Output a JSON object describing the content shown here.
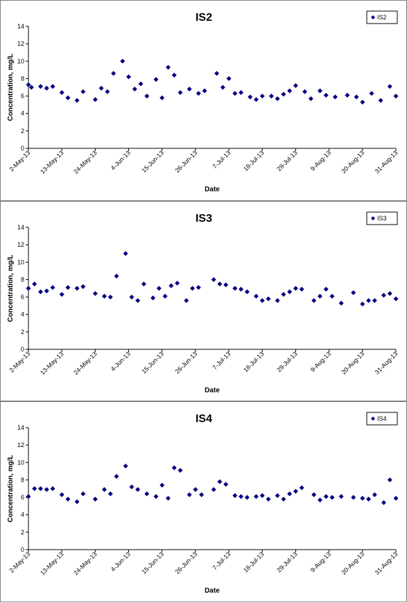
{
  "chart_data": [
    {
      "type": "scatter",
      "title": "IS2",
      "xlabel": "Date",
      "ylabel": "Concentration, mg/L",
      "ylim": [
        0,
        14
      ],
      "yticks": [
        "0",
        "2",
        "4",
        "6",
        "8",
        "10",
        "12",
        "14"
      ],
      "xlim": [
        "2013-05-02",
        "2013-08-31"
      ],
      "xticks": [
        "2-May-13",
        "13-May-13",
        "24-May-13",
        "4-Jun-13",
        "15-Jun-13",
        "26-Jun-13",
        "7-Jul-13",
        "18-Jul-13",
        "29-Jul-13",
        "9-Aug-13",
        "20-Aug-13",
        "31-Aug-13"
      ],
      "xtick_dates": [
        "2013-05-02",
        "2013-05-13",
        "2013-05-24",
        "2013-06-04",
        "2013-06-15",
        "2013-06-26",
        "2013-07-07",
        "2013-07-18",
        "2013-07-29",
        "2013-08-09",
        "2013-08-20",
        "2013-08-31"
      ],
      "grid": false,
      "legend": "top-right",
      "marker_color": "#000080",
      "series": [
        {
          "name": "IS2",
          "x": [
            "2013-05-02",
            "2013-05-03",
            "2013-05-06",
            "2013-05-08",
            "2013-05-10",
            "2013-05-13",
            "2013-05-15",
            "2013-05-18",
            "2013-05-20",
            "2013-05-24",
            "2013-05-26",
            "2013-05-28",
            "2013-05-30",
            "2013-06-02",
            "2013-06-04",
            "2013-06-06",
            "2013-06-08",
            "2013-06-10",
            "2013-06-13",
            "2013-06-15",
            "2013-06-17",
            "2013-06-19",
            "2013-06-21",
            "2013-06-24",
            "2013-06-27",
            "2013-06-29",
            "2013-07-03",
            "2013-07-05",
            "2013-07-07",
            "2013-07-09",
            "2013-07-11",
            "2013-07-14",
            "2013-07-16",
            "2013-07-18",
            "2013-07-21",
            "2013-07-23",
            "2013-07-25",
            "2013-07-27",
            "2013-07-29",
            "2013-08-01",
            "2013-08-03",
            "2013-08-06",
            "2013-08-08",
            "2013-08-11",
            "2013-08-15",
            "2013-08-18",
            "2013-08-20",
            "2013-08-23",
            "2013-08-26",
            "2013-08-29",
            "2013-08-31"
          ],
          "y": [
            7.3,
            7.0,
            7.1,
            6.9,
            7.1,
            6.4,
            5.8,
            5.5,
            6.5,
            5.6,
            6.9,
            6.5,
            8.6,
            10.0,
            8.2,
            6.8,
            7.4,
            6.0,
            7.9,
            5.8,
            9.3,
            8.4,
            6.4,
            6.8,
            6.3,
            6.6,
            8.6,
            7.0,
            8.0,
            6.3,
            6.4,
            5.9,
            5.6,
            6.0,
            6.0,
            5.7,
            6.2,
            6.6,
            7.2,
            6.5,
            5.7,
            6.6,
            6.1,
            5.9,
            6.1,
            5.9,
            5.3,
            6.3,
            5.5,
            7.1,
            6.0
          ]
        }
      ]
    },
    {
      "type": "scatter",
      "title": "IS3",
      "xlabel": "Date",
      "ylabel": "Concentration, mg/L",
      "ylim": [
        0,
        14
      ],
      "yticks": [
        "0",
        "2",
        "4",
        "6",
        "8",
        "10",
        "12",
        "14"
      ],
      "xlim": [
        "2013-05-02",
        "2013-08-31"
      ],
      "xticks": [
        "2-May-13",
        "13-May-13",
        "24-May-13",
        "4-Jun-13",
        "15-Jun-13",
        "26-Jun-13",
        "7-Jul-13",
        "18-Jul-13",
        "29-Jul-13",
        "9-Aug-13",
        "20-Aug-13",
        "31-Aug-13"
      ],
      "xtick_dates": [
        "2013-05-02",
        "2013-05-13",
        "2013-05-24",
        "2013-06-04",
        "2013-06-15",
        "2013-06-26",
        "2013-07-07",
        "2013-07-18",
        "2013-07-29",
        "2013-08-09",
        "2013-08-20",
        "2013-08-31"
      ],
      "grid": false,
      "legend": "top-right",
      "marker_color": "#000080",
      "series": [
        {
          "name": "IS3",
          "x": [
            "2013-05-02",
            "2013-05-04",
            "2013-05-06",
            "2013-05-08",
            "2013-05-10",
            "2013-05-13",
            "2013-05-15",
            "2013-05-18",
            "2013-05-20",
            "2013-05-24",
            "2013-05-27",
            "2013-05-29",
            "2013-05-31",
            "2013-06-03",
            "2013-06-05",
            "2013-06-07",
            "2013-06-09",
            "2013-06-12",
            "2013-06-14",
            "2013-06-16",
            "2013-06-18",
            "2013-06-20",
            "2013-06-23",
            "2013-06-25",
            "2013-06-27",
            "2013-07-02",
            "2013-07-04",
            "2013-07-06",
            "2013-07-09",
            "2013-07-11",
            "2013-07-13",
            "2013-07-16",
            "2013-07-18",
            "2013-07-20",
            "2013-07-23",
            "2013-07-25",
            "2013-07-27",
            "2013-07-29",
            "2013-07-31",
            "2013-08-04",
            "2013-08-06",
            "2013-08-08",
            "2013-08-10",
            "2013-08-13",
            "2013-08-17",
            "2013-08-20",
            "2013-08-22",
            "2013-08-24",
            "2013-08-27",
            "2013-08-29",
            "2013-08-31"
          ],
          "y": [
            7.0,
            7.5,
            6.6,
            6.7,
            7.1,
            6.3,
            7.1,
            7.0,
            7.2,
            6.4,
            6.1,
            6.0,
            8.4,
            11.0,
            6.0,
            5.6,
            7.5,
            5.9,
            7.0,
            6.1,
            7.3,
            7.6,
            5.6,
            7.0,
            7.1,
            8.0,
            7.5,
            7.4,
            7.0,
            6.9,
            6.6,
            6.1,
            5.6,
            5.8,
            5.6,
            6.3,
            6.6,
            7.0,
            6.9,
            5.6,
            6.1,
            6.9,
            6.1,
            5.3,
            6.5,
            5.2,
            5.6,
            5.6,
            6.2,
            6.4,
            5.8
          ]
        }
      ]
    },
    {
      "type": "scatter",
      "title": "IS4",
      "xlabel": "Date",
      "ylabel": "Concentration, mg/L",
      "ylim": [
        0,
        14
      ],
      "yticks": [
        "0",
        "2",
        "4",
        "6",
        "8",
        "10",
        "12",
        "14"
      ],
      "xlim": [
        "2013-05-02",
        "2013-08-31"
      ],
      "xticks": [
        "2-May-13",
        "13-May-13",
        "24-May-13",
        "4-Jun-13",
        "15-Jun-13",
        "26-Jun-13",
        "7-Jul-13",
        "18-Jul-13",
        "29-Jul-13",
        "9-Aug-13",
        "20-Aug-13",
        "31-Aug-13"
      ],
      "xtick_dates": [
        "2013-05-02",
        "2013-05-13",
        "2013-05-24",
        "2013-06-04",
        "2013-06-15",
        "2013-06-26",
        "2013-07-07",
        "2013-07-18",
        "2013-07-29",
        "2013-08-09",
        "2013-08-20",
        "2013-08-31"
      ],
      "grid": false,
      "legend": "top-right",
      "marker_color": "#000080",
      "series": [
        {
          "name": "IS4",
          "x": [
            "2013-05-02",
            "2013-05-04",
            "2013-05-06",
            "2013-05-08",
            "2013-05-10",
            "2013-05-13",
            "2013-05-15",
            "2013-05-18",
            "2013-05-20",
            "2013-05-24",
            "2013-05-27",
            "2013-05-29",
            "2013-05-31",
            "2013-06-03",
            "2013-06-05",
            "2013-06-07",
            "2013-06-10",
            "2013-06-13",
            "2013-06-15",
            "2013-06-17",
            "2013-06-19",
            "2013-06-21",
            "2013-06-24",
            "2013-06-26",
            "2013-06-28",
            "2013-07-02",
            "2013-07-04",
            "2013-07-06",
            "2013-07-09",
            "2013-07-11",
            "2013-07-13",
            "2013-07-16",
            "2013-07-18",
            "2013-07-20",
            "2013-07-23",
            "2013-07-25",
            "2013-07-27",
            "2013-07-29",
            "2013-07-31",
            "2013-08-04",
            "2013-08-06",
            "2013-08-08",
            "2013-08-10",
            "2013-08-13",
            "2013-08-17",
            "2013-08-20",
            "2013-08-22",
            "2013-08-24",
            "2013-08-27",
            "2013-08-29",
            "2013-08-31"
          ],
          "y": [
            6.1,
            7.0,
            7.0,
            6.9,
            7.0,
            6.3,
            5.8,
            5.5,
            6.4,
            5.8,
            6.9,
            6.4,
            8.4,
            9.6,
            7.2,
            6.9,
            6.4,
            6.1,
            7.4,
            5.9,
            9.4,
            9.1,
            6.3,
            6.9,
            6.3,
            6.9,
            7.8,
            7.5,
            6.2,
            6.1,
            6.0,
            6.1,
            6.2,
            5.8,
            6.2,
            5.8,
            6.4,
            6.7,
            7.1,
            6.3,
            5.7,
            6.1,
            6.0,
            6.1,
            6.0,
            5.9,
            5.8,
            6.3,
            5.4,
            8.0,
            5.9
          ]
        }
      ]
    }
  ]
}
